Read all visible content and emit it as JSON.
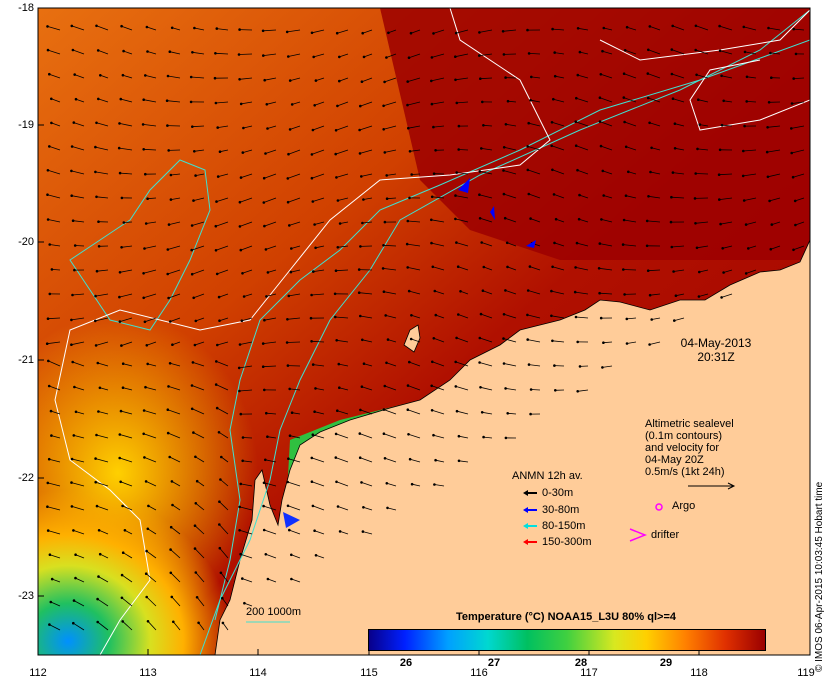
{
  "map": {
    "date": "04-May-2013",
    "time": "20:31Z",
    "credit": "© IMOS 06-Apr-2015 10:03:45 Hobart time",
    "y_ticks": [
      "-18",
      "-19",
      "-20",
      "-21",
      "-22",
      "-23"
    ],
    "x_ticks": [
      "112",
      "113",
      "114",
      "115",
      "116",
      "117",
      "118",
      "119"
    ],
    "altimetry_text": [
      "Altimetric sealevel",
      "(0.1m contours)",
      "and velocity for",
      "04-May 20Z",
      "0.5m/s (1kt 24h)"
    ],
    "anmn": {
      "title": "ANMN 12h av.",
      "items": [
        {
          "label": "0-30m",
          "color": "#000000"
        },
        {
          "label": "30-80m",
          "color": "#0000ff"
        },
        {
          "label": "80-150m",
          "color": "#00e0e0"
        },
        {
          "label": "150-300m",
          "color": "#ff0000"
        }
      ]
    },
    "argo_label": "Argo",
    "drifter_label": "drifter",
    "depth_key": "200  1000m",
    "colorbar": {
      "title": "Temperature (°C) NOAA15_L3U 80% ql>=4",
      "ticks": [
        "26",
        "27",
        "28",
        "29"
      ]
    },
    "colors": {
      "land": "#ffcc99",
      "hot": "#b20000",
      "contour_white": "#ffffff",
      "contour_cyan": "#40e0d0"
    }
  }
}
